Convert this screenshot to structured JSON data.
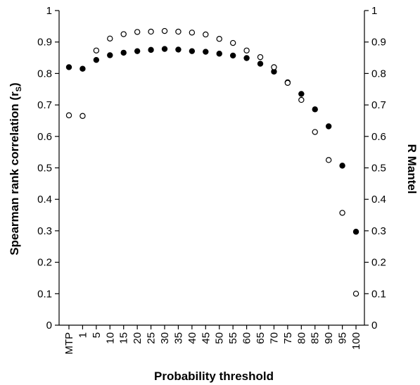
{
  "chart_data": {
    "type": "scatter",
    "title": "",
    "xlabel": "Probability threshold",
    "ylabel": "Spearman rank correlation (r",
    "ylabel_sub": "S",
    "ylabel_close": ")",
    "y2label": "R Mantel",
    "categories": [
      "MTP",
      "1",
      "5",
      "10",
      "15",
      "20",
      "25",
      "30",
      "35",
      "40",
      "45",
      "50",
      "55",
      "60",
      "65",
      "70",
      "75",
      "80",
      "85",
      "90",
      "95",
      "100"
    ],
    "ylim": [
      0,
      1
    ],
    "y_ticks": [
      "0",
      "0.1",
      "0.2",
      "0.3",
      "0.4",
      "0.5",
      "0.6",
      "0.7",
      "0.8",
      "0.9",
      "1"
    ],
    "y2lim": [
      0,
      1
    ],
    "y2_ticks": [
      "0",
      "0.1",
      "0.2",
      "0.3",
      "0.4",
      "0.5",
      "0.6",
      "0.7",
      "0.8",
      "0.9",
      "1"
    ],
    "grid": false,
    "series": [
      {
        "marker": "filled-circle",
        "color": "#000000",
        "values": [
          0.82,
          0.815,
          0.843,
          0.858,
          0.866,
          0.871,
          0.875,
          0.878,
          0.876,
          0.871,
          0.869,
          0.863,
          0.857,
          0.849,
          0.831,
          0.806,
          0.772,
          0.735,
          0.686,
          0.632,
          0.507,
          0.297
        ]
      },
      {
        "marker": "open-circle",
        "color": "#000000",
        "values": [
          0.667,
          0.665,
          0.873,
          0.911,
          0.925,
          0.932,
          0.933,
          0.935,
          0.933,
          0.93,
          0.924,
          0.91,
          0.897,
          0.873,
          0.852,
          0.82,
          0.77,
          0.716,
          0.614,
          0.525,
          0.357,
          0.1
        ]
      }
    ]
  }
}
